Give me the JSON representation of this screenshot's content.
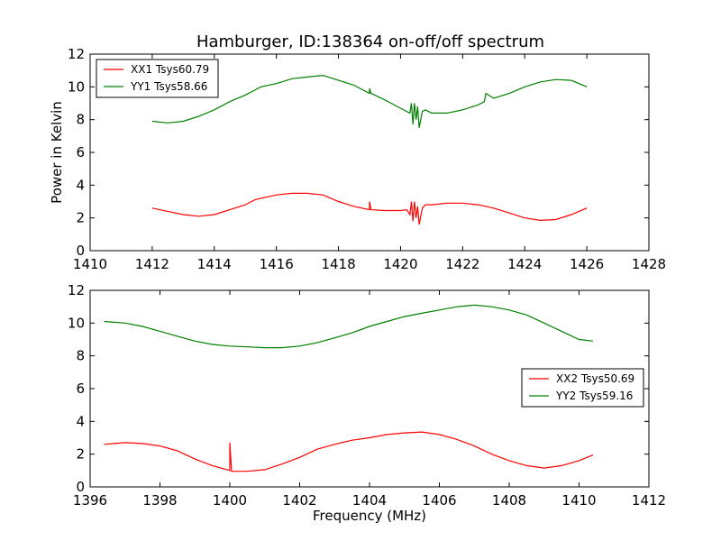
{
  "figure_title": "Hamburger, ID:138364 on-off/off spectrum",
  "chart_data": [
    {
      "type": "line",
      "title": "Hamburger, ID:138364 on-off/off spectrum",
      "xlabel": "",
      "ylabel": "Power in Kelvin",
      "xlim": [
        1410,
        1428
      ],
      "ylim": [
        0,
        12
      ],
      "xticks": [
        "1410",
        "1412",
        "1414",
        "1416",
        "1418",
        "1420",
        "1422",
        "1424",
        "1426",
        "1428"
      ],
      "yticks": [
        "0",
        "2",
        "4",
        "6",
        "8",
        "10",
        "12"
      ],
      "grid": false,
      "legend_position": "top-left",
      "series": [
        {
          "name": "XX1 Tsys60.79",
          "color": "#ff0000",
          "x": [
            1412.0,
            1412.5,
            1413.0,
            1413.5,
            1414.0,
            1414.5,
            1415.0,
            1415.3,
            1415.5,
            1416.0,
            1416.5,
            1417.0,
            1417.5,
            1418.0,
            1418.5,
            1419.0,
            1419.0,
            1419.05,
            1419.5,
            1420.0,
            1420.2,
            1420.3,
            1420.35,
            1420.4,
            1420.45,
            1420.5,
            1420.55,
            1420.6,
            1420.7,
            1420.8,
            1421.0,
            1421.5,
            1422.0,
            1422.5,
            1423.0,
            1423.5,
            1424.0,
            1424.5,
            1425.0,
            1425.5,
            1426.0
          ],
          "y": [
            2.6,
            2.4,
            2.2,
            2.1,
            2.2,
            2.5,
            2.8,
            3.1,
            3.2,
            3.4,
            3.5,
            3.5,
            3.4,
            3.0,
            2.7,
            2.5,
            3.0,
            2.5,
            2.45,
            2.45,
            2.5,
            2.2,
            3.0,
            1.8,
            3.0,
            2.0,
            2.7,
            1.6,
            2.6,
            2.8,
            2.8,
            2.9,
            2.9,
            2.8,
            2.6,
            2.3,
            2.0,
            1.85,
            1.9,
            2.2,
            2.6
          ]
        },
        {
          "name": "YY1 Tsys58.66",
          "color": "#008000",
          "x": [
            1412.0,
            1412.5,
            1413.0,
            1413.5,
            1414.0,
            1414.5,
            1415.0,
            1415.3,
            1415.5,
            1416.0,
            1416.5,
            1417.0,
            1417.5,
            1418.0,
            1418.5,
            1419.0,
            1419.0,
            1419.05,
            1419.5,
            1420.0,
            1420.2,
            1420.3,
            1420.35,
            1420.4,
            1420.45,
            1420.5,
            1420.55,
            1420.6,
            1420.7,
            1420.8,
            1421.0,
            1421.5,
            1422.0,
            1422.5,
            1422.7,
            1422.75,
            1423.0,
            1423.5,
            1424.0,
            1424.5,
            1425.0,
            1425.5,
            1426.0
          ],
          "y": [
            7.9,
            7.8,
            7.9,
            8.2,
            8.6,
            9.1,
            9.5,
            9.8,
            10.0,
            10.2,
            10.5,
            10.6,
            10.7,
            10.4,
            10.1,
            9.6,
            9.9,
            9.6,
            9.2,
            8.7,
            8.5,
            8.4,
            9.0,
            7.7,
            9.0,
            8.0,
            8.8,
            7.5,
            8.5,
            8.6,
            8.4,
            8.4,
            8.6,
            8.9,
            9.1,
            9.6,
            9.3,
            9.6,
            10.0,
            10.3,
            10.45,
            10.4,
            10.0
          ]
        }
      ]
    },
    {
      "type": "line",
      "title": "",
      "xlabel": "Frequency (MHz)",
      "ylabel": "",
      "xlim": [
        1396,
        1412
      ],
      "ylim": [
        0,
        12
      ],
      "xticks": [
        "1396",
        "1398",
        "1400",
        "1402",
        "1404",
        "1406",
        "1408",
        "1410",
        "1412"
      ],
      "yticks": [
        "0",
        "2",
        "4",
        "6",
        "8",
        "10",
        "12"
      ],
      "grid": false,
      "legend_position": "center-right",
      "series": [
        {
          "name": "XX2 Tsys50.69",
          "color": "#ff0000",
          "x": [
            1396.4,
            1397.0,
            1397.5,
            1398.0,
            1398.5,
            1399.0,
            1399.5,
            1400.0,
            1400.0,
            1400.05,
            1400.5,
            1401.0,
            1401.5,
            1402.0,
            1402.5,
            1403.0,
            1403.5,
            1404.0,
            1404.5,
            1405.0,
            1405.5,
            1406.0,
            1406.5,
            1407.0,
            1407.5,
            1408.0,
            1408.5,
            1409.0,
            1409.5,
            1410.0,
            1410.4
          ],
          "y": [
            2.6,
            2.7,
            2.65,
            2.5,
            2.2,
            1.7,
            1.3,
            1.0,
            2.7,
            0.95,
            0.95,
            1.05,
            1.4,
            1.8,
            2.3,
            2.6,
            2.85,
            3.0,
            3.2,
            3.3,
            3.35,
            3.2,
            2.9,
            2.5,
            2.0,
            1.6,
            1.3,
            1.15,
            1.3,
            1.6,
            1.95
          ]
        },
        {
          "name": "YY2 Tsys59.16",
          "color": "#008000",
          "x": [
            1396.4,
            1397.0,
            1397.5,
            1398.0,
            1398.5,
            1399.0,
            1399.5,
            1400.0,
            1400.5,
            1401.0,
            1401.5,
            1402.0,
            1402.5,
            1403.0,
            1403.5,
            1404.0,
            1404.5,
            1405.0,
            1405.5,
            1406.0,
            1406.5,
            1407.0,
            1407.5,
            1408.0,
            1408.5,
            1409.0,
            1409.5,
            1410.0,
            1410.4
          ],
          "y": [
            10.1,
            10.0,
            9.8,
            9.5,
            9.2,
            8.9,
            8.7,
            8.6,
            8.55,
            8.5,
            8.5,
            8.6,
            8.8,
            9.1,
            9.4,
            9.8,
            10.1,
            10.4,
            10.6,
            10.8,
            11.0,
            11.1,
            11.0,
            10.8,
            10.5,
            10.0,
            9.5,
            9.0,
            8.9
          ]
        }
      ]
    }
  ]
}
